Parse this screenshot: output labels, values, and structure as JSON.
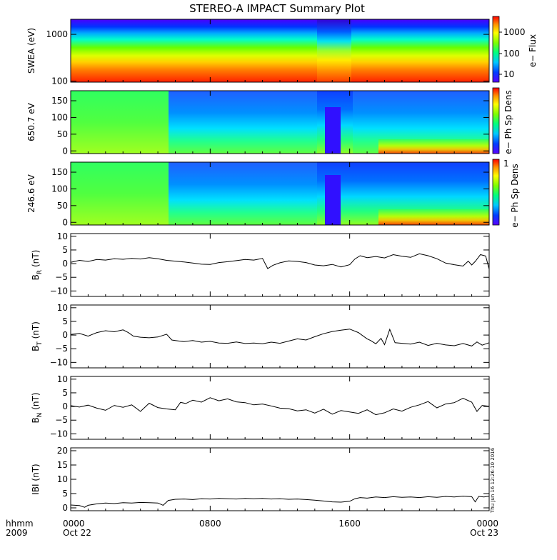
{
  "title": "STEREO-A IMPACT Summary Plot",
  "x_axis": {
    "row1_label": "hhmm",
    "row2_label": "2009",
    "ticks": [
      {
        "hour": 0,
        "time": "0000",
        "date": "Oct 22"
      },
      {
        "hour": 8,
        "time": "0800",
        "date": ""
      },
      {
        "hour": 16,
        "time": "1600",
        "date": ""
      },
      {
        "hour": 24,
        "time": "0000",
        "date": "Oct 23"
      }
    ]
  },
  "timestamp": "Thu Jun 16 12:26:10 2016",
  "colors": {
    "spectrogram_low": "#3b10ff",
    "spectrogram_high": "#ff0000",
    "line": "#000000"
  },
  "chart_data": [
    {
      "type": "heatmap",
      "ylabel": "SWEA (eV)",
      "ylog": true,
      "ylim": [
        95,
        2100
      ],
      "y_ticks": [
        {
          "value": 100,
          "label": "100"
        },
        {
          "value": 1000,
          "label": "1000"
        }
      ],
      "colorbar_label": "e− Flux",
      "colorbar_ticks": [
        "10",
        "100",
        "1000"
      ]
    },
    {
      "type": "heatmap",
      "ylabel": "650.7 eV",
      "ylim": [
        -8,
        180
      ],
      "y_ticks": [
        {
          "value": 0,
          "label": "0"
        },
        {
          "value": 50,
          "label": "50"
        },
        {
          "value": 100,
          "label": "100"
        },
        {
          "value": 150,
          "label": "150"
        }
      ],
      "colorbar_label": "e− Ph Sp Dens"
    },
    {
      "type": "heatmap",
      "ylabel": "246.6 eV",
      "ylim": [
        -8,
        180
      ],
      "y_ticks": [
        {
          "value": 0,
          "label": "0"
        },
        {
          "value": 50,
          "label": "50"
        },
        {
          "value": 100,
          "label": "100"
        },
        {
          "value": 150,
          "label": "150"
        }
      ],
      "colorbar_label": "e− Ph Sp Dens",
      "colorbar_ticks": [
        "1"
      ]
    },
    {
      "type": "line",
      "ylabel_main": "B",
      "ylabel_sub": "R",
      "ylabel_rest": " (nT)",
      "ylim": [
        -12,
        11
      ],
      "y_ticks": [
        {
          "value": -10,
          "label": "−10"
        },
        {
          "value": -5,
          "label": "−5"
        },
        {
          "value": 0,
          "label": "0"
        },
        {
          "value": 5,
          "label": "5"
        },
        {
          "value": 10,
          "label": "10"
        }
      ],
      "x": [
        0,
        0.5,
        1,
        1.5,
        2,
        2.5,
        3,
        3.5,
        4,
        4.5,
        5,
        5.5,
        6,
        6.5,
        7,
        7.5,
        8,
        8.5,
        9,
        9.5,
        10,
        10.5,
        11,
        11.3,
        11.6,
        12,
        12.5,
        13,
        13.5,
        14,
        14.5,
        15,
        15.5,
        16,
        16.3,
        16.6,
        17,
        17.5,
        18,
        18.5,
        19,
        19.5,
        20,
        20.5,
        21,
        21.5,
        22,
        22.5,
        22.8,
        23,
        23.2,
        23.5,
        23.8,
        24
      ],
      "values": [
        0.5,
        1.2,
        0.8,
        1.5,
        1.3,
        1.8,
        1.6,
        1.9,
        1.7,
        2.2,
        1.8,
        1.2,
        0.9,
        0.6,
        0.2,
        -0.2,
        -0.3,
        0.4,
        0.7,
        1.1,
        1.5,
        1.3,
        1.9,
        -1.8,
        -0.6,
        0.3,
        1.0,
        0.8,
        0.4,
        -0.5,
        -0.8,
        -0.3,
        -1.2,
        -0.4,
        1.7,
        2.9,
        2.2,
        2.6,
        2.1,
        3.3,
        2.7,
        2.3,
        3.6,
        2.9,
        1.8,
        0.2,
        -0.4,
        -0.9,
        0.9,
        -0.5,
        0.8,
        3.3,
        2.8,
        -2.0
      ]
    },
    {
      "type": "line",
      "ylabel_main": "B",
      "ylabel_sub": "T",
      "ylabel_rest": " (nT)",
      "ylim": [
        -12,
        11
      ],
      "y_ticks": [
        {
          "value": -10,
          "label": "−10"
        },
        {
          "value": -5,
          "label": "−5"
        },
        {
          "value": 0,
          "label": "0"
        },
        {
          "value": 5,
          "label": "5"
        },
        {
          "value": 10,
          "label": "10"
        }
      ],
      "x": [
        0,
        0.5,
        1,
        1.5,
        2,
        2.5,
        3,
        3.3,
        3.6,
        4,
        4.5,
        5,
        5.5,
        5.8,
        6,
        6.5,
        7,
        7.5,
        8,
        8.5,
        9,
        9.5,
        10,
        10.5,
        11,
        11.5,
        12,
        12.5,
        13,
        13.5,
        14,
        14.5,
        15,
        15.5,
        16,
        16.5,
        17,
        17.2,
        17.5,
        17.8,
        18,
        18.3,
        18.6,
        19,
        19.5,
        20,
        20.5,
        21,
        21.5,
        22,
        22.5,
        23,
        23.3,
        23.6,
        24
      ],
      "values": [
        0.2,
        0.6,
        -0.4,
        0.9,
        1.6,
        1.2,
        1.9,
        0.9,
        -0.4,
        -0.8,
        -1.0,
        -0.7,
        0.3,
        -1.8,
        -2.0,
        -2.4,
        -2.0,
        -2.6,
        -2.3,
        -2.9,
        -3.0,
        -2.5,
        -3.1,
        -2.9,
        -3.2,
        -2.6,
        -3.0,
        -2.2,
        -1.4,
        -1.8,
        -0.6,
        0.5,
        1.3,
        1.8,
        2.2,
        0.9,
        -1.4,
        -2.0,
        -3.2,
        -1.2,
        -3.5,
        2.1,
        -2.8,
        -3.0,
        -3.3,
        -2.6,
        -3.8,
        -3.0,
        -3.6,
        -3.9,
        -3.1,
        -4.0,
        -2.5,
        -3.7,
        -2.8
      ]
    },
    {
      "type": "line",
      "ylabel_main": "B",
      "ylabel_sub": "N",
      "ylabel_rest": " (nT)",
      "ylim": [
        -12,
        11
      ],
      "y_ticks": [
        {
          "value": -10,
          "label": "−10"
        },
        {
          "value": -5,
          "label": "−5"
        },
        {
          "value": 0,
          "label": "0"
        },
        {
          "value": 5,
          "label": "5"
        },
        {
          "value": 10,
          "label": "10"
        }
      ],
      "x": [
        0,
        0.5,
        1,
        1.5,
        2,
        2.5,
        3,
        3.5,
        4,
        4.5,
        5,
        5.5,
        6,
        6.3,
        6.6,
        7,
        7.5,
        8,
        8.5,
        9,
        9.5,
        10,
        10.5,
        11,
        11.5,
        12,
        12.5,
        13,
        13.5,
        14,
        14.5,
        15,
        15.5,
        16,
        16.5,
        17,
        17.5,
        18,
        18.5,
        19,
        19.5,
        20,
        20.5,
        21,
        21.5,
        22,
        22.5,
        23,
        23.3,
        23.6,
        24
      ],
      "values": [
        0.3,
        -0.2,
        0.5,
        -0.6,
        -1.4,
        0.4,
        -0.3,
        0.6,
        -1.8,
        1.2,
        -0.4,
        -0.9,
        -1.2,
        1.5,
        1.1,
        2.3,
        1.6,
        3.2,
        2.1,
        2.8,
        1.7,
        1.4,
        0.6,
        0.9,
        0.2,
        -0.6,
        -0.8,
        -1.6,
        -1.2,
        -2.4,
        -1.0,
        -2.8,
        -1.5,
        -2.0,
        -2.5,
        -1.2,
        -3.0,
        -2.3,
        -0.9,
        -1.7,
        -0.3,
        0.6,
        1.8,
        -0.5,
        0.9,
        1.4,
        3.0,
        1.6,
        -1.8,
        0.4,
        0.1
      ]
    },
    {
      "type": "line",
      "ylabel": "IBI (nT)",
      "ylim": [
        -1,
        21
      ],
      "y_ticks": [
        {
          "value": 0,
          "label": "0"
        },
        {
          "value": 5,
          "label": "5"
        },
        {
          "value": 10,
          "label": "10"
        },
        {
          "value": 15,
          "label": "15"
        },
        {
          "value": 20,
          "label": "20"
        }
      ],
      "x": [
        0,
        0.5,
        0.8,
        1,
        1.5,
        2,
        2.5,
        3,
        3.5,
        4,
        4.5,
        5,
        5.3,
        5.6,
        6,
        6.5,
        7,
        7.5,
        8,
        8.5,
        9,
        9.5,
        10,
        10.5,
        11,
        11.5,
        12,
        12.5,
        13,
        13.5,
        14,
        14.5,
        15,
        15.5,
        16,
        16.3,
        16.6,
        17,
        17.5,
        18,
        18.5,
        19,
        19.5,
        20,
        20.5,
        21,
        21.5,
        22,
        22.5,
        23,
        23.2,
        23.4,
        23.7,
        24
      ],
      "values": [
        1.0,
        0.8,
        0.2,
        0.9,
        1.4,
        1.7,
        1.5,
        1.8,
        1.7,
        1.9,
        1.8,
        1.7,
        0.9,
        2.6,
        3.0,
        3.1,
        2.9,
        3.2,
        3.1,
        3.3,
        3.2,
        3.1,
        3.3,
        3.2,
        3.3,
        3.1,
        3.2,
        3.0,
        3.1,
        2.9,
        2.7,
        2.4,
        2.1,
        2.0,
        2.3,
        3.2,
        3.6,
        3.4,
        3.8,
        3.6,
        3.9,
        3.7,
        3.8,
        3.6,
        3.9,
        3.7,
        4.0,
        3.8,
        4.1,
        3.9,
        2.1,
        4.0,
        3.8,
        4.1
      ]
    }
  ]
}
